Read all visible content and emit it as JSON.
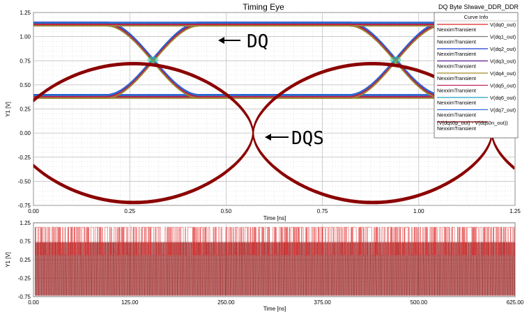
{
  "window": {
    "title": "Timing Eye",
    "design_name": "DQ Byte SIwave_DDR_DDR"
  },
  "chart_data": [
    {
      "type": "line",
      "title": "Timing Eye",
      "xlabel": "Time [ns]",
      "ylabel": "Y1 [V]",
      "xlim": [
        0,
        1.25
      ],
      "ylim": [
        -0.75,
        1.25
      ],
      "x_ticks": [
        "0.00",
        "0.25",
        "0.50",
        "0.75",
        "1.00",
        "1.25"
      ],
      "y_ticks": [
        "1.25",
        "1.00",
        "0.75",
        "0.50",
        "0.25",
        "0.00",
        "-0.25",
        "-0.50",
        "-0.75"
      ],
      "grid": true,
      "legend": {
        "title": "Curve Info",
        "placement": "top-right",
        "entries": [
          {
            "name": "V(dq0_out)",
            "sub": "NexximTransient",
            "color": "#e02020"
          },
          {
            "name": "V(dq1_out)",
            "sub": "NexximTransient",
            "color": "#7a7a7a"
          },
          {
            "name": "V(dq2_out)",
            "sub": "NexximTransient",
            "color": "#1a3ad0"
          },
          {
            "name": "V(dq3_out)",
            "sub": "NexximTransient",
            "color": "#5a1a90"
          },
          {
            "name": "V(dq4_out)",
            "sub": "NexximTransient",
            "color": "#a08a20"
          },
          {
            "name": "V(dq5_out)",
            "sub": "NexximTransient",
            "color": "#c02060"
          },
          {
            "name": "V(dq6_out)",
            "sub": "NexximTransient",
            "color": "#20a0c0"
          },
          {
            "name": "V(dq7_out)",
            "sub": "NexximTransient",
            "color": "#3070e0"
          },
          {
            "name": "(V(dqs0p_out) - V(dqs0n_out))",
            "sub": "NexximTransient",
            "color": "#8b0000"
          }
        ]
      },
      "annotations": [
        {
          "text": "DQ",
          "points_to": {
            "x": 0.48,
            "y": 1.05
          }
        },
        {
          "text": "DQS",
          "points_to": {
            "x": 0.6,
            "y": 0.0
          }
        }
      ],
      "dq_eye": {
        "high_v": 1.13,
        "low_v": 0.38,
        "cross_v": 0.76,
        "crossings_ns": [
          0.31,
          0.94
        ]
      },
      "dqs_eye": {
        "high_v": 0.72,
        "low_v": -0.72,
        "crossings_ns": [
          0.57,
          1.19
        ]
      }
    },
    {
      "type": "line",
      "title": "",
      "xlabel": "Time [ns]",
      "ylabel": "Y1 [V]",
      "xlim": [
        0,
        625
      ],
      "ylim": [
        -0.75,
        1.25
      ],
      "x_ticks": [
        "0.00",
        "125.00",
        "250.00",
        "375.00",
        "500.00",
        "625.00"
      ],
      "y_ticks": [
        "1.25",
        "0.75",
        "0.25",
        "-0.25",
        "-0.75"
      ],
      "grid": true,
      "series": [
        {
          "name": "V(dq0_out)",
          "color": "#e02020",
          "high_v": 1.13,
          "low_v": 0.38
        },
        {
          "name": "(V(dqs0p_out) - V(dqs0n_out))",
          "color": "#8b0000",
          "high_v": 0.72,
          "low_v": -0.72
        }
      ]
    }
  ]
}
